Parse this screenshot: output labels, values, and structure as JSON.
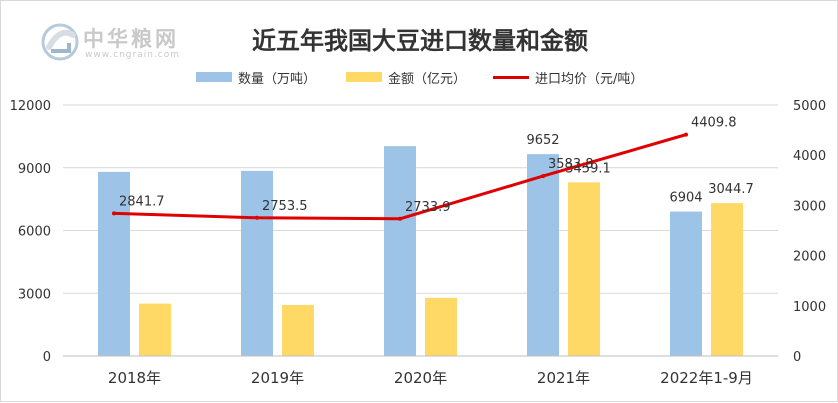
{
  "logo": {
    "name": "中华粮网",
    "url": "www.cngrain.com"
  },
  "colors": {
    "quantity": "#9dc3e6",
    "amount": "#ffd966",
    "price": "#e00000",
    "text": "#333333",
    "grid": "#d9d9d9"
  },
  "chart_data": {
    "type": "bar",
    "title": "近五年我国大豆进口数量和金额",
    "categories": [
      "2018年",
      "2019年",
      "2020年",
      "2021年",
      "2022年1-9月"
    ],
    "series": [
      {
        "name": "数量（万吨）",
        "axis": "left",
        "kind": "bar",
        "values": [
          8803,
          8851,
          10033,
          9652,
          6904
        ],
        "labels": [
          "",
          "",
          "",
          "9652",
          "6904"
        ]
      },
      {
        "name": "金额（亿元）",
        "axis": "right",
        "kind": "bar",
        "values": [
          1044.0,
          1017.0,
          1158.0,
          3459.1,
          3044.7
        ],
        "labels": [
          "",
          "",
          "",
          "3459.1",
          "3044.7"
        ]
      },
      {
        "name": "进口均价（元/吨）",
        "axis": "right",
        "kind": "line",
        "values": [
          2841.7,
          2753.5,
          2733.9,
          3583.8,
          4409.8
        ],
        "labels": [
          "2841.7",
          "2753.5",
          "2733.9",
          "3583.8",
          "4409.8"
        ]
      }
    ],
    "y_left": {
      "min": 0,
      "max": 12000,
      "ticks": [
        "0",
        "3000",
        "6000",
        "9000",
        "12000"
      ]
    },
    "y_right": {
      "min": 0,
      "max": 5000,
      "ticks": [
        "0",
        "1000",
        "2000",
        "3000",
        "4000",
        "5000"
      ]
    },
    "grid": true,
    "legend_position": "top"
  }
}
